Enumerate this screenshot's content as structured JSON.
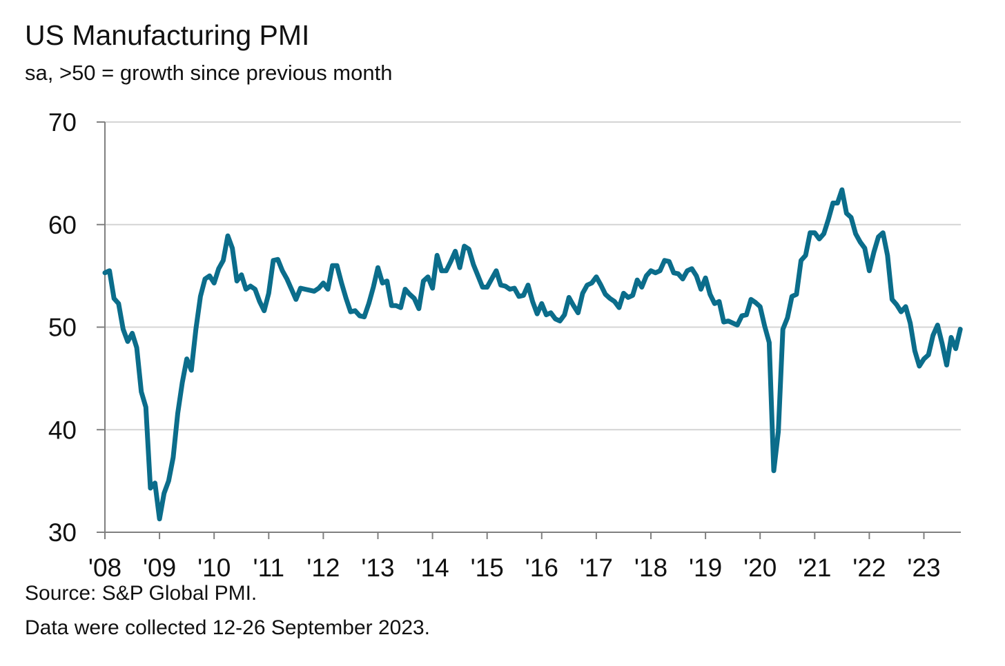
{
  "chart_data": {
    "type": "line",
    "title": "US Manufacturing PMI",
    "subtitle": "sa, >50 = growth since previous month",
    "xlabel": "",
    "ylabel": "",
    "ylim": [
      30,
      70
    ],
    "yticks": [
      "30",
      "40",
      "50",
      "60",
      "70"
    ],
    "xticks": [
      "'08",
      "'09",
      "'10",
      "'11",
      "'12",
      "'13",
      "'14",
      "'15",
      "'16",
      "'17",
      "'18",
      "'19",
      "'20",
      "'21",
      "'22",
      "'23"
    ],
    "grid": true,
    "frequency": "monthly",
    "start": "2008-01",
    "end": "2023-09",
    "series": [
      {
        "name": "US Manufacturing PMI",
        "color": "#0b6d8b",
        "values": [
          55.3,
          55.5,
          52.8,
          52.3,
          49.8,
          48.6,
          49.4,
          48.0,
          43.7,
          42.2,
          34.3,
          34.8,
          31.3,
          33.8,
          35.0,
          37.3,
          41.6,
          44.6,
          46.9,
          45.8,
          49.8,
          53.0,
          54.7,
          55.0,
          54.3,
          55.7,
          56.5,
          58.9,
          57.7,
          54.5,
          55.1,
          53.7,
          54.0,
          53.7,
          52.5,
          51.6,
          53.3,
          56.5,
          56.6,
          55.5,
          54.7,
          53.7,
          52.7,
          53.8,
          53.7,
          53.6,
          53.5,
          53.8,
          54.3,
          53.7,
          56.0,
          56.0,
          54.3,
          52.8,
          51.5,
          51.6,
          51.1,
          51.0,
          52.3,
          53.9,
          55.8,
          54.3,
          54.5,
          52.1,
          52.1,
          51.9,
          53.7,
          53.2,
          52.8,
          51.8,
          54.5,
          54.9,
          53.8,
          57.0,
          55.5,
          55.5,
          56.4,
          57.4,
          55.8,
          57.9,
          57.6,
          56.1,
          55.0,
          53.9,
          53.9,
          54.7,
          55.5,
          54.1,
          54.0,
          53.7,
          53.8,
          53.0,
          53.1,
          54.1,
          52.5,
          51.3,
          52.3,
          51.2,
          51.4,
          50.8,
          50.6,
          51.2,
          52.9,
          52.1,
          51.4,
          53.3,
          54.1,
          54.3,
          54.9,
          54.1,
          53.2,
          52.8,
          52.5,
          51.9,
          53.3,
          52.9,
          53.1,
          54.6,
          53.9,
          55.0,
          55.5,
          55.3,
          55.5,
          56.5,
          56.4,
          55.3,
          55.2,
          54.7,
          55.5,
          55.7,
          55.0,
          53.7,
          54.8,
          53.2,
          52.3,
          52.5,
          50.5,
          50.6,
          50.4,
          50.2,
          51.1,
          51.2,
          52.7,
          52.4,
          52.0,
          50.1,
          48.5,
          36.0,
          39.8,
          49.8,
          50.9,
          53.0,
          53.2,
          56.5,
          57.0,
          59.2,
          59.2,
          58.6,
          59.1,
          60.5,
          62.1,
          62.1,
          63.4,
          61.1,
          60.7,
          59.1,
          58.3,
          57.7,
          55.5,
          57.3,
          58.8,
          59.2,
          57.0,
          52.7,
          52.2,
          51.5,
          52.0,
          50.4,
          47.7,
          46.2,
          46.9,
          47.3,
          49.2,
          50.2,
          48.4,
          46.3,
          49.0,
          47.9,
          49.8
        ]
      }
    ],
    "source": "Source: S&P Global PMI.",
    "note": "Data were collected 12-26 September 2023."
  }
}
